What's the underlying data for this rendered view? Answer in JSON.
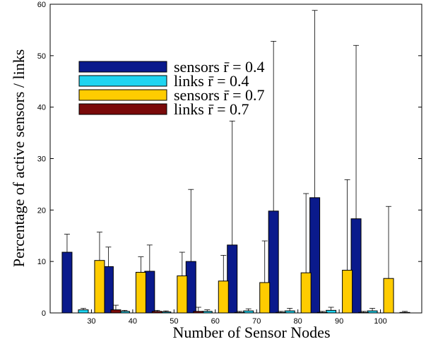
{
  "chart_data": {
    "type": "bar",
    "xlabel": "Number of Sensor Nodes",
    "ylabel": "Percentage of active sensors / links",
    "ylim": [
      0,
      60
    ],
    "yticks": [
      0,
      10,
      20,
      30,
      40,
      50,
      60
    ],
    "categories": [
      "30",
      "40",
      "50",
      "60",
      "70",
      "80",
      "90",
      "100"
    ],
    "grid": false,
    "legend_position": "upper-left",
    "series": [
      {
        "name": "sensors r̄ = 0.4",
        "color": "#0a1a8c",
        "values": [
          11.8,
          9.0,
          8.1,
          10.0,
          13.2,
          19.8,
          22.4,
          18.3
        ],
        "error_upper": [
          15.3,
          12.8,
          13.2,
          24.0,
          37.3,
          52.8,
          58.8,
          52.0
        ]
      },
      {
        "name": "links r̄ = 0.4",
        "color": "#1ed4f0",
        "values": [
          0.6,
          0.3,
          0.2,
          0.3,
          0.4,
          0.4,
          0.5,
          0.4
        ],
        "error_upper": [
          0.9,
          0.5,
          0.4,
          0.6,
          0.8,
          0.9,
          1.1,
          0.9
        ]
      },
      {
        "name": "sensors r̄ = 0.7",
        "color": "#ffcc00",
        "values": [
          10.2,
          7.9,
          7.2,
          6.2,
          5.9,
          7.8,
          8.3,
          6.7
        ],
        "error_upper": [
          15.7,
          10.9,
          11.8,
          11.2,
          14.0,
          23.2,
          25.9,
          20.7
        ]
      },
      {
        "name": "links r̄ = 0.7",
        "color": "#7a0a0a",
        "values": [
          0.6,
          0.3,
          0.3,
          0.1,
          0.1,
          0.1,
          0.1,
          0.1
        ],
        "error_upper": [
          1.5,
          0.5,
          1.1,
          0.3,
          0.3,
          0.3,
          0.3,
          0.3
        ]
      }
    ]
  }
}
